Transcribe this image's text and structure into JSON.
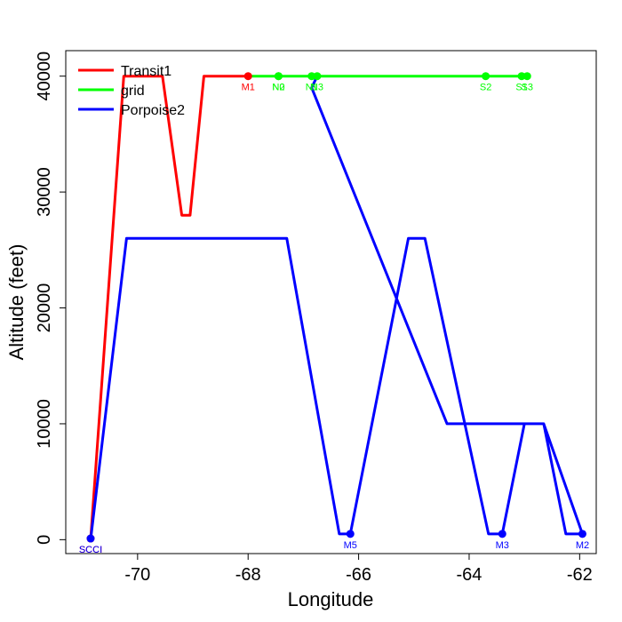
{
  "chart_data": {
    "type": "line",
    "title": "",
    "xlabel": "Longitude",
    "ylabel": "Altitude (feet)",
    "xlim": [
      -71.3,
      -61.7
    ],
    "ylim": [
      -1200,
      42200
    ],
    "x_ticks": [
      -70,
      -68,
      -66,
      -64,
      -62
    ],
    "x_tick_labels": [
      "-70",
      "-68",
      "-66",
      "-64",
      "-62"
    ],
    "y_ticks": [
      0,
      10000,
      20000,
      30000,
      40000
    ],
    "y_tick_labels": [
      "0",
      "10000",
      "20000",
      "30000",
      "40000"
    ],
    "legend": {
      "position": "top-left",
      "entries": [
        "Transit1",
        "grid",
        "Porpoise2"
      ]
    },
    "series": [
      {
        "name": "Transit1",
        "color": "#ff0000",
        "x": [
          -70.85,
          -70.25,
          -69.55,
          -69.2,
          -69.05,
          -68.8,
          -68.0
        ],
        "y": [
          0,
          40000,
          40000,
          28000,
          28000,
          40000,
          40000
        ],
        "points": [
          {
            "x": -70.85,
            "y": 100,
            "label": "SCCI"
          },
          {
            "x": -68.0,
            "y": 40000,
            "label": "M1"
          }
        ]
      },
      {
        "name": "grid",
        "color": "#00ff00",
        "x": [
          -68.0,
          -62.95
        ],
        "y": [
          40000,
          40000
        ],
        "points": [
          {
            "x": -67.45,
            "y": 40000,
            "label": "N2"
          },
          {
            "x": -67.45,
            "y": 40000,
            "label": "N0"
          },
          {
            "x": -66.85,
            "y": 40000,
            "label": "N1"
          },
          {
            "x": -66.75,
            "y": 40000,
            "label": "N3"
          },
          {
            "x": -63.7,
            "y": 40000,
            "label": "S2"
          },
          {
            "x": -63.05,
            "y": 40000,
            "label": "S1"
          },
          {
            "x": -62.95,
            "y": 40000,
            "label": "S3"
          }
        ]
      },
      {
        "name": "Porpoise2",
        "color": "#0000ff",
        "x": [
          -70.85,
          -70.2,
          -67.3,
          -66.35,
          -66.15,
          -65.1,
          -64.8,
          -63.65,
          -63.4,
          -63.0,
          -62.65,
          -62.25,
          -61.95,
          -62.65,
          -64.4,
          -66.85,
          -66.75
        ],
        "y": [
          0,
          26000,
          26000,
          500,
          500,
          26000,
          26000,
          500,
          500,
          10000,
          10000,
          500,
          500,
          10000,
          10000,
          39000,
          40000
        ],
        "points": [
          {
            "x": -70.85,
            "y": 100,
            "label": "SCCI"
          },
          {
            "x": -66.15,
            "y": 500,
            "label": "M5"
          },
          {
            "x": -63.4,
            "y": 500,
            "label": "M3"
          },
          {
            "x": -61.95,
            "y": 500,
            "label": "M2"
          }
        ]
      }
    ]
  }
}
